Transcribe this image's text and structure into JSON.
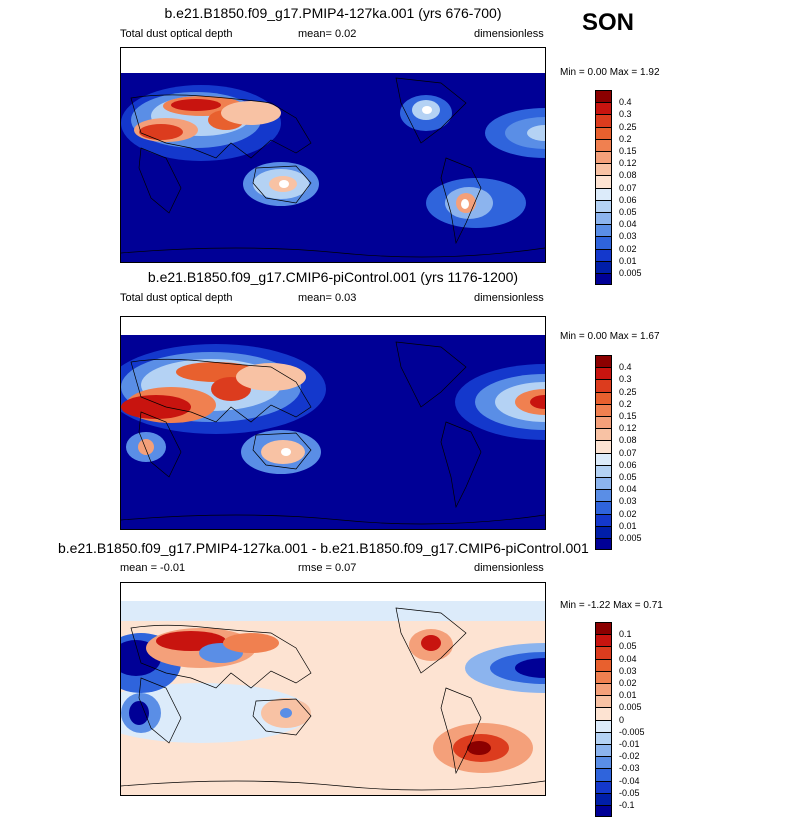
{
  "season": "SON",
  "panels": [
    {
      "title": "b.e21.B1850.f09_g17.PMIP4-127ka.001 (yrs 676-700)",
      "left_label": "Total dust optical depth",
      "center_label": "mean=   0.02",
      "right_label": "dimensionless",
      "min_max": "Min =   0.00 Max =   1.92"
    },
    {
      "title": "b.e21.B1850.f09_g17.CMIP6-piControl.001 (yrs 1176-1200)",
      "left_label": "Total dust optical depth",
      "center_label": "mean=   0.03",
      "right_label": "dimensionless",
      "min_max": "Min =   0.00 Max =   1.67"
    },
    {
      "title": "b.e21.B1850.f09_g17.PMIP4-127ka.001 - b.e21.B1850.f09_g17.CMIP6-piControl.001",
      "left_label": "mean =  -0.01",
      "center_label": "rmse =   0.07",
      "right_label": "dimensionless",
      "min_max": "Min =  -1.22 Max =   0.71"
    }
  ],
  "chart_data": [
    {
      "type": "heatmap",
      "title": "b.e21.B1850.f09_g17.PMIP4-127ka.001 (yrs 676-700)",
      "variable": "Total dust optical depth",
      "units": "dimensionless",
      "mean": 0.02,
      "min": 0.0,
      "max": 1.92,
      "colorbar_levels": [
        "0.4",
        "0.3",
        "0.25",
        "0.2",
        "0.15",
        "0.12",
        "0.08",
        "0.07",
        "0.06",
        "0.05",
        "0.04",
        "0.03",
        "0.02",
        "0.01",
        "0.005"
      ],
      "colorbar_colors": [
        "#8b0000",
        "#c8140f",
        "#dc3c1e",
        "#e8602e",
        "#f08050",
        "#f4a07a",
        "#f8c2a4",
        "#fde3d2",
        "#dcebfa",
        "#b4d2f4",
        "#8cb4ee",
        "#5a8ee6",
        "#2f64dc",
        "#1438cc",
        "#001ea8",
        "#000096"
      ]
    },
    {
      "type": "heatmap",
      "title": "b.e21.B1850.f09_g17.CMIP6-piControl.001 (yrs 1176-1200)",
      "variable": "Total dust optical depth",
      "units": "dimensionless",
      "mean": 0.03,
      "min": 0.0,
      "max": 1.67,
      "colorbar_levels": [
        "0.4",
        "0.3",
        "0.25",
        "0.2",
        "0.15",
        "0.12",
        "0.08",
        "0.07",
        "0.06",
        "0.05",
        "0.04",
        "0.03",
        "0.02",
        "0.01",
        "0.005"
      ],
      "colorbar_colors": [
        "#8b0000",
        "#c8140f",
        "#dc3c1e",
        "#e8602e",
        "#f08050",
        "#f4a07a",
        "#f8c2a4",
        "#fde3d2",
        "#dcebfa",
        "#b4d2f4",
        "#8cb4ee",
        "#5a8ee6",
        "#2f64dc",
        "#1438cc",
        "#001ea8",
        "#000096"
      ]
    },
    {
      "type": "heatmap",
      "title": "b.e21.B1850.f09_g17.PMIP4-127ka.001 - b.e21.B1850.f09_g17.CMIP6-piControl.001",
      "units": "dimensionless",
      "mean": -0.01,
      "rmse": 0.07,
      "min": -1.22,
      "max": 0.71,
      "colorbar_levels": [
        "0.1",
        "0.05",
        "0.04",
        "0.03",
        "0.02",
        "0.01",
        "0.005",
        "0",
        "-0.005",
        "-0.01",
        "-0.02",
        "-0.03",
        "-0.04",
        "-0.05",
        "-0.1"
      ],
      "colorbar_colors": [
        "#8b0000",
        "#c8140f",
        "#dc3c1e",
        "#e8602e",
        "#f08050",
        "#f4a07a",
        "#f8c2a4",
        "#fde3d2",
        "#dcebfa",
        "#b4d2f4",
        "#8cb4ee",
        "#5a8ee6",
        "#2f64dc",
        "#1438cc",
        "#001ea8",
        "#000096"
      ]
    }
  ]
}
